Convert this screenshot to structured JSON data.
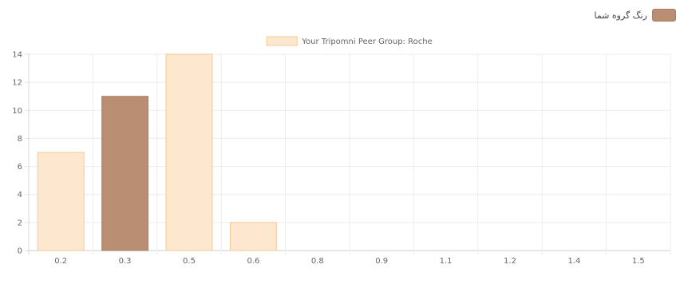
{
  "top_legend": {
    "label": "رنگ گروه شما",
    "color": "#b98e72"
  },
  "chart_data": {
    "type": "bar",
    "title": "",
    "xlabel": "",
    "ylabel": "",
    "ylim": [
      0,
      14
    ],
    "yticks": [
      0,
      2,
      4,
      6,
      8,
      10,
      12,
      14
    ],
    "categories": [
      "0.2",
      "0.3",
      "0.5",
      "0.6",
      "0.8",
      "0.9",
      "1.1",
      "1.2",
      "1.4",
      "1.5"
    ],
    "series": [
      {
        "name": "Your Tripomni Peer Group: Roche",
        "values": [
          7,
          11,
          14,
          2,
          0,
          0,
          0,
          0,
          0,
          0
        ],
        "fill": "#fde7cf",
        "stroke": "#f3c998",
        "highlight_index": 1,
        "highlight_fill": "#b98e72",
        "highlight_stroke": "#a97e62"
      }
    ],
    "legend": "top-center",
    "grid": true
  }
}
